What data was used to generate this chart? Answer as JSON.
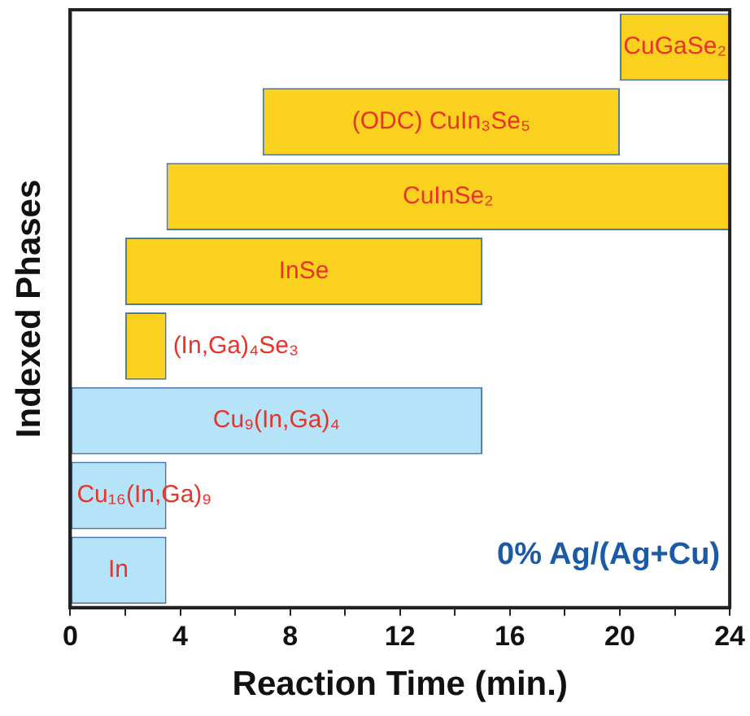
{
  "chart_data": {
    "type": "bar",
    "orientation": "horizontal",
    "xlabel": "Reaction Time (min.)",
    "ylabel": "Indexed Phases",
    "categories": [
      "CuGaSe₂",
      "(ODC) CuIn₃Se₅",
      "CuInSe₂",
      "InSe",
      "(In,Ga)₄Se₃",
      "Cu₉(In,Ga)₄",
      "Cu₁₆(In,Ga)₉",
      "In"
    ],
    "base": [
      20,
      7,
      3.5,
      2,
      2,
      0,
      0,
      0
    ],
    "values": [
      4,
      13,
      20.5,
      13,
      1.5,
      15,
      3.5,
      3.5
    ],
    "colors": [
      "#fbd120",
      "#fbd120",
      "#fbd120",
      "#fbd120",
      "#fbd120",
      "#b5e3f8",
      "#b5e3f8",
      "#b5e3f8"
    ],
    "xlim": [
      0,
      24
    ],
    "xticks": [
      0,
      {
        "value": 2,
        "label": null
      },
      4,
      {
        "value": 6,
        "label": null
      },
      8,
      {
        "value": 10,
        "label": null
      },
      12,
      {
        "value": 14,
        "label": null
      },
      16,
      {
        "value": 18,
        "label": null
      },
      20,
      {
        "value": 22,
        "label": null
      },
      24
    ],
    "tick_labels": "x",
    "grid": false,
    "legend": false,
    "annotations": [
      "0% Ag/(Ag+Cu)"
    ]
  }
}
